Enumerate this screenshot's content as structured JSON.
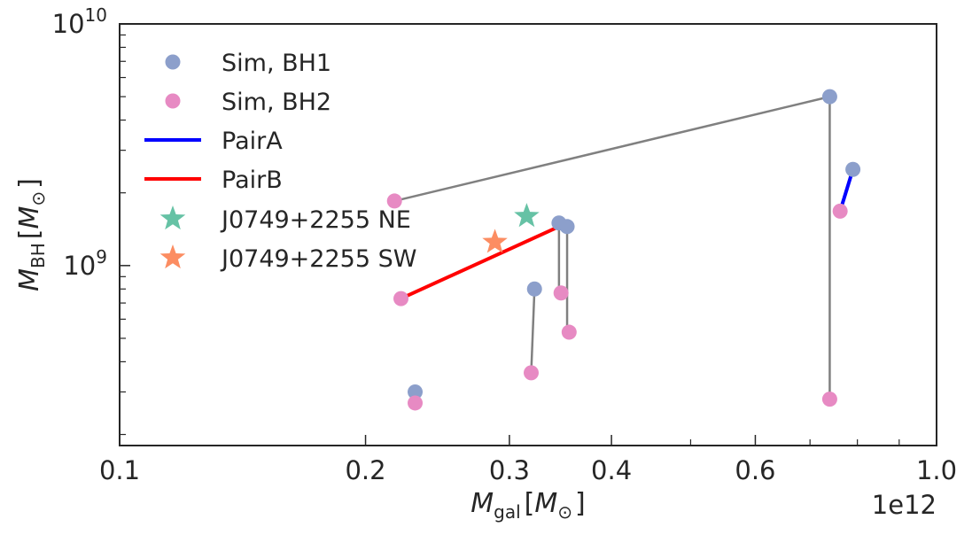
{
  "chart_data": {
    "type": "scatter",
    "xlabel_main": "M",
    "xlabel_sub": "gal",
    "xlabel_unit_main": "M",
    "xlabel_unit_sub": "⊙",
    "ylabel_main": "M",
    "ylabel_sub": "BH",
    "ylabel_unit_main": "M",
    "ylabel_unit_sub": "⊙",
    "x_offset_label": "1e12",
    "x_scale": "log",
    "y_scale": "log",
    "xlim": [
      0.1,
      1.0
    ],
    "ylim": [
      180000000,
      10000000000
    ],
    "x_major_ticks": [
      0.1,
      0.2,
      0.3,
      0.4,
      0.6,
      1.0
    ],
    "x_tick_labels": [
      "0.1",
      "0.2",
      "0.3",
      "0.4",
      "0.6",
      "1.0"
    ],
    "x_minor_ticks": [
      0.5,
      0.7,
      0.8,
      0.9
    ],
    "y_major_ticks": [
      1000000000,
      10000000000
    ],
    "y_tick_labels": [
      {
        "base": "10",
        "exp": "9"
      },
      {
        "base": "10",
        "exp": "10"
      }
    ],
    "y_minor_ticks": [
      200000000,
      300000000,
      400000000,
      500000000,
      600000000,
      700000000,
      800000000,
      900000000,
      2000000000,
      3000000000,
      4000000000,
      5000000000,
      6000000000,
      7000000000,
      8000000000,
      9000000000
    ],
    "legend_position": "top-left",
    "legend": [
      {
        "label": "Sim, BH1",
        "kind": "marker",
        "color": "#8c9fcb"
      },
      {
        "label": "Sim, BH2",
        "kind": "marker",
        "color": "#e78ac3"
      },
      {
        "label": "PairA",
        "kind": "line",
        "color": "#0000ff"
      },
      {
        "label": "PairB",
        "kind": "line",
        "color": "#ff0000"
      },
      {
        "label": "J0749+2255 NE",
        "kind": "star",
        "color": "#66c2a5"
      },
      {
        "label": "J0749+2255 SW",
        "kind": "star",
        "color": "#fc8d62"
      }
    ],
    "connector_color": "#808080",
    "series": [
      {
        "name": "Sim, BH1",
        "color": "#8c9fcb",
        "points": [
          {
            "x": 0.74,
            "y": 5000000000
          },
          {
            "x": 0.79,
            "y": 2500000000
          },
          {
            "x": 0.345,
            "y": 1500000000
          },
          {
            "x": 0.353,
            "y": 1450000000
          },
          {
            "x": 0.322,
            "y": 800000000
          },
          {
            "x": 0.23,
            "y": 300000000
          }
        ]
      },
      {
        "name": "Sim, BH2",
        "color": "#e78ac3",
        "points": [
          {
            "x": 0.217,
            "y": 1850000000
          },
          {
            "x": 0.221,
            "y": 730000000
          },
          {
            "x": 0.762,
            "y": 1680000000
          },
          {
            "x": 0.347,
            "y": 770000000
          },
          {
            "x": 0.355,
            "y": 530000000
          },
          {
            "x": 0.319,
            "y": 360000000
          },
          {
            "x": 0.23,
            "y": 270000000
          },
          {
            "x": 0.74,
            "y": 280000000
          }
        ]
      }
    ],
    "connectors": [
      {
        "x1": 0.217,
        "y1": 1850000000,
        "x2": 0.74,
        "y2": 5000000000
      },
      {
        "x1": 0.74,
        "y1": 5000000000,
        "x2": 0.74,
        "y2": 280000000
      },
      {
        "x1": 0.345,
        "y1": 1500000000,
        "x2": 0.345,
        "y2": 770000000
      },
      {
        "x1": 0.353,
        "y1": 1450000000,
        "x2": 0.353,
        "y2": 530000000
      },
      {
        "x1": 0.322,
        "y1": 800000000,
        "x2": 0.319,
        "y2": 360000000
      },
      {
        "x1": 0.23,
        "y1": 300000000,
        "x2": 0.23,
        "y2": 270000000
      }
    ],
    "pairs": [
      {
        "name": "PairA",
        "color": "#0000ff",
        "x1": 0.762,
        "y1": 1680000000,
        "x2": 0.79,
        "y2": 2500000000
      },
      {
        "name": "PairB",
        "color": "#ff0000",
        "x1": 0.221,
        "y1": 730000000,
        "x2": 0.345,
        "y2": 1450000000
      }
    ],
    "observations": [
      {
        "name": "J0749+2255 NE",
        "color": "#66c2a5",
        "x": 0.315,
        "y": 1600000000
      },
      {
        "name": "J0749+2255 SW",
        "color": "#fc8d62",
        "x": 0.288,
        "y": 1250000000
      }
    ]
  }
}
